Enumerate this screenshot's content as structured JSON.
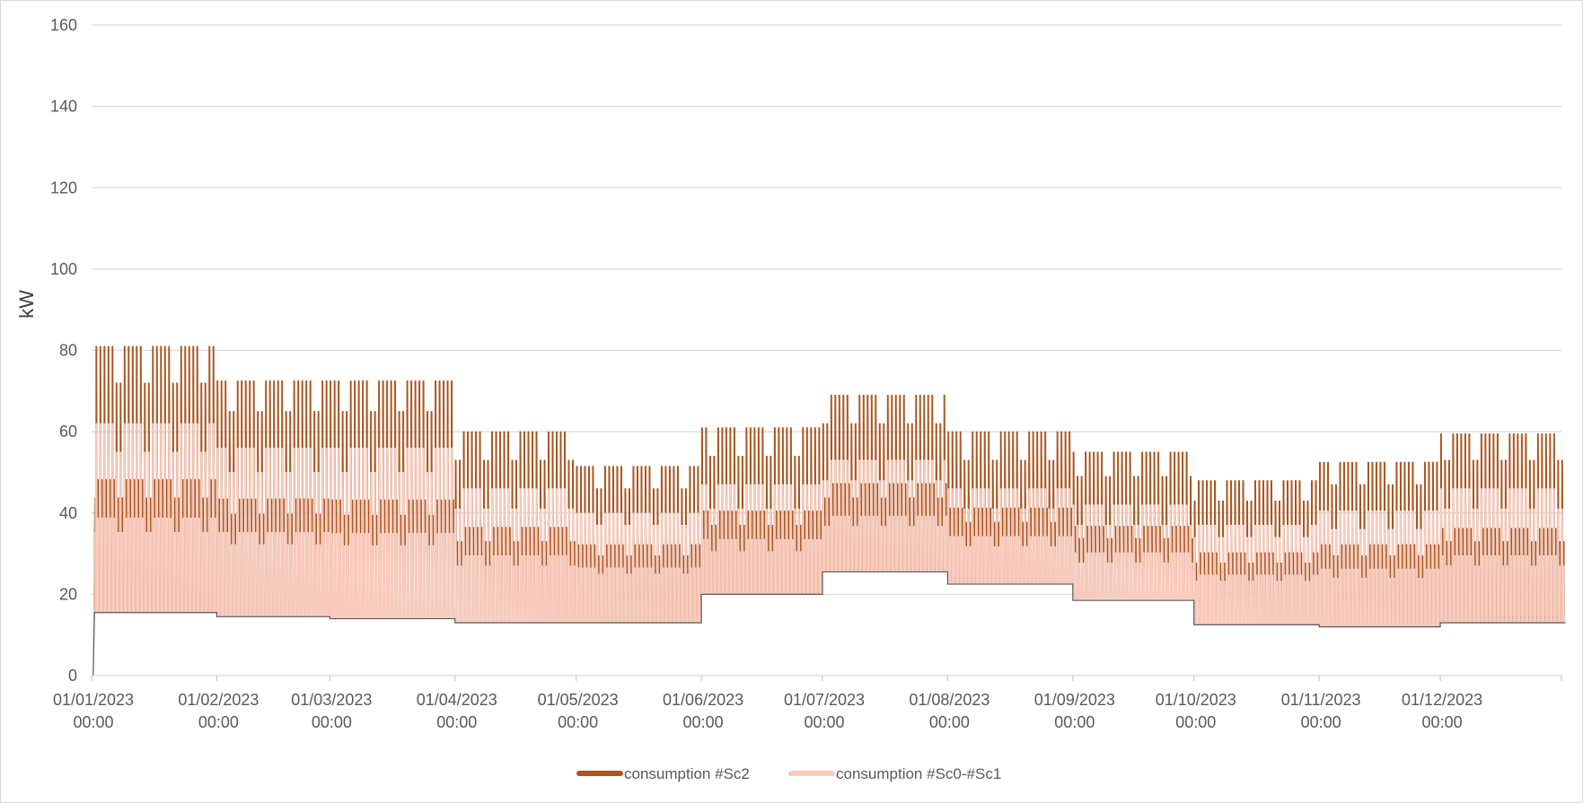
{
  "chart_data": {
    "type": "area",
    "title": "",
    "xlabel": "",
    "ylabel": "kW",
    "ylim": [
      0,
      160
    ],
    "yticks": [
      0,
      20,
      40,
      60,
      80,
      100,
      120,
      140,
      160
    ],
    "grid": true,
    "legend_position": "bottom",
    "xlim": [
      "2023-01-01",
      "2023-12-31"
    ],
    "x_ticks": [
      {
        "date": "2023-01-01",
        "label1": "01/01/2023",
        "label2": "00:00"
      },
      {
        "date": "2023-02-01",
        "label1": "01/02/2023",
        "label2": "00:00"
      },
      {
        "date": "2023-03-01",
        "label1": "01/03/2023",
        "label2": "00:00"
      },
      {
        "date": "2023-04-01",
        "label1": "01/04/2023",
        "label2": "00:00"
      },
      {
        "date": "2023-05-01",
        "label1": "01/05/2023",
        "label2": "00:00"
      },
      {
        "date": "2023-06-01",
        "label1": "01/06/2023",
        "label2": "00:00"
      },
      {
        "date": "2023-07-01",
        "label1": "01/07/2023",
        "label2": "00:00"
      },
      {
        "date": "2023-08-01",
        "label1": "01/08/2023",
        "label2": "00:00"
      },
      {
        "date": "2023-09-01",
        "label1": "01/09/2023",
        "label2": "00:00"
      },
      {
        "date": "2023-10-01",
        "label1": "01/10/2023",
        "label2": "00:00"
      },
      {
        "date": "2023-11-01",
        "label1": "01/11/2023",
        "label2": "00:00"
      },
      {
        "date": "2023-12-01",
        "label1": "01/12/2023",
        "label2": "00:00"
      }
    ],
    "monthly_profile": [
      {
        "month": "2023-01",
        "min_kw": 15.5,
        "sc01_weekday_peak_kw": 62,
        "sc01_weekend_peak_kw": 55,
        "sc2_weekday_peak_kw": 81,
        "sc2_weekend_peak_kw": 72
      },
      {
        "month": "2023-02",
        "min_kw": 14.5,
        "sc01_weekday_peak_kw": 56,
        "sc01_weekend_peak_kw": 50,
        "sc2_weekday_peak_kw": 72.5,
        "sc2_weekend_peak_kw": 65
      },
      {
        "month": "2023-03",
        "min_kw": 14,
        "sc01_weekday_peak_kw": 56,
        "sc01_weekend_peak_kw": 50,
        "sc2_weekday_peak_kw": 72.5,
        "sc2_weekend_peak_kw": 65
      },
      {
        "month": "2023-04",
        "min_kw": 13,
        "sc01_weekday_peak_kw": 46,
        "sc01_weekend_peak_kw": 41,
        "sc2_weekday_peak_kw": 60,
        "sc2_weekend_peak_kw": 53
      },
      {
        "month": "2023-05",
        "min_kw": 13,
        "sc01_weekday_peak_kw": 40,
        "sc01_weekend_peak_kw": 37,
        "sc2_weekday_peak_kw": 51.5,
        "sc2_weekend_peak_kw": 46
      },
      {
        "month": "2023-06",
        "min_kw": 20,
        "sc01_weekday_peak_kw": 47,
        "sc01_weekend_peak_kw": 41,
        "sc2_weekday_peak_kw": 61,
        "sc2_weekend_peak_kw": 54
      },
      {
        "month": "2023-07",
        "min_kw": 25.5,
        "sc01_weekday_peak_kw": 53,
        "sc01_weekend_peak_kw": 48,
        "sc2_weekday_peak_kw": 69,
        "sc2_weekend_peak_kw": 62
      },
      {
        "month": "2023-08",
        "min_kw": 22.5,
        "sc01_weekday_peak_kw": 46,
        "sc01_weekend_peak_kw": 41,
        "sc2_weekday_peak_kw": 60,
        "sc2_weekend_peak_kw": 53
      },
      {
        "month": "2023-09",
        "min_kw": 18.5,
        "sc01_weekday_peak_kw": 42,
        "sc01_weekend_peak_kw": 37,
        "sc2_weekday_peak_kw": 55,
        "sc2_weekend_peak_kw": 49
      },
      {
        "month": "2023-10",
        "min_kw": 12.5,
        "sc01_weekday_peak_kw": 37,
        "sc01_weekend_peak_kw": 34,
        "sc2_weekday_peak_kw": 48,
        "sc2_weekend_peak_kw": 43
      },
      {
        "month": "2023-11",
        "min_kw": 12,
        "sc01_weekday_peak_kw": 40.5,
        "sc01_weekend_peak_kw": 36,
        "sc2_weekday_peak_kw": 52.5,
        "sc2_weekend_peak_kw": 47
      },
      {
        "month": "2023-12",
        "min_kw": 13,
        "sc01_weekday_peak_kw": 46,
        "sc01_weekend_peak_kw": 41,
        "sc2_weekday_peak_kw": 59.5,
        "sc2_weekend_peak_kw": 53
      }
    ],
    "series": [
      {
        "name": "consumption #Sc2",
        "color": "#A9551E"
      },
      {
        "name": "consumption #Sc0-#Sc1",
        "color": "#F8CBBE"
      }
    ],
    "min_line_color": "#595959"
  }
}
